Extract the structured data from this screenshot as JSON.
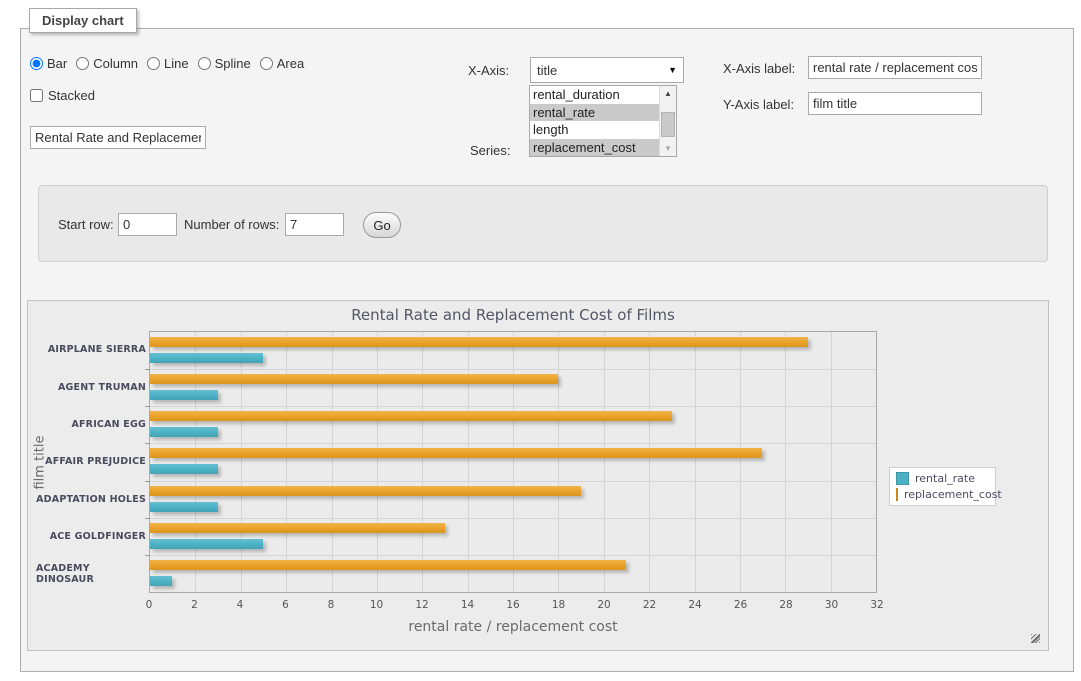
{
  "panel": {
    "legend": "Display chart"
  },
  "chart_type": {
    "options": [
      "Bar",
      "Column",
      "Line",
      "Spline",
      "Area"
    ],
    "selected": "Bar"
  },
  "stacked": {
    "label": "Stacked",
    "checked": false
  },
  "title_input": {
    "value": "Rental Rate and Replacement Cost of Films"
  },
  "x_axis": {
    "label": "X-Axis:",
    "selected": "title"
  },
  "series_picker": {
    "label": "Series:",
    "options": [
      {
        "label": "rental_duration",
        "selected": false
      },
      {
        "label": "rental_rate",
        "selected": true
      },
      {
        "label": "length",
        "selected": false
      },
      {
        "label": "replacement_cost",
        "selected": true
      }
    ]
  },
  "x_axis_label": {
    "label": "X-Axis label:",
    "value": "rental rate / replacement cost"
  },
  "y_axis_label": {
    "label": "Y-Axis label:",
    "value": "film title"
  },
  "rows_form": {
    "start_row_label": "Start row:",
    "start_row_value": "0",
    "num_rows_label": "Number of rows:",
    "num_rows_value": "7",
    "go_label": "Go"
  },
  "chart_data": {
    "type": "bar",
    "orientation": "horizontal",
    "title": "Rental Rate and Replacement Cost of Films",
    "xlabel": "rental rate / replacement cost",
    "ylabel": "film title",
    "categories": [
      "AIRPLANE SIERRA",
      "AGENT TRUMAN",
      "AFRICAN EGG",
      "AFFAIR PREJUDICE",
      "ADAPTATION HOLES",
      "ACE GOLDFINGER",
      "ACADEMY DINOSAUR"
    ],
    "series": [
      {
        "name": "rental_rate",
        "color": "#4bb2c5",
        "values": [
          4.99,
          2.99,
          2.99,
          2.99,
          2.99,
          4.99,
          0.99
        ]
      },
      {
        "name": "replacement_cost",
        "color": "#EAA228",
        "values": [
          28.99,
          17.99,
          22.99,
          26.99,
          18.99,
          12.99,
          20.99
        ]
      }
    ],
    "xlim": [
      0,
      32
    ],
    "xticks": [
      0,
      2,
      4,
      6,
      8,
      10,
      12,
      14,
      16,
      18,
      20,
      22,
      24,
      26,
      28,
      30,
      32
    ],
    "grid": true,
    "legend_position": "right",
    "bar_order_in_band": [
      "replacement_cost",
      "rental_rate"
    ]
  },
  "colors": {
    "series_teal": "#4bb2c5",
    "series_orange": "#EAA228",
    "selection_gray": "#cacaca"
  }
}
